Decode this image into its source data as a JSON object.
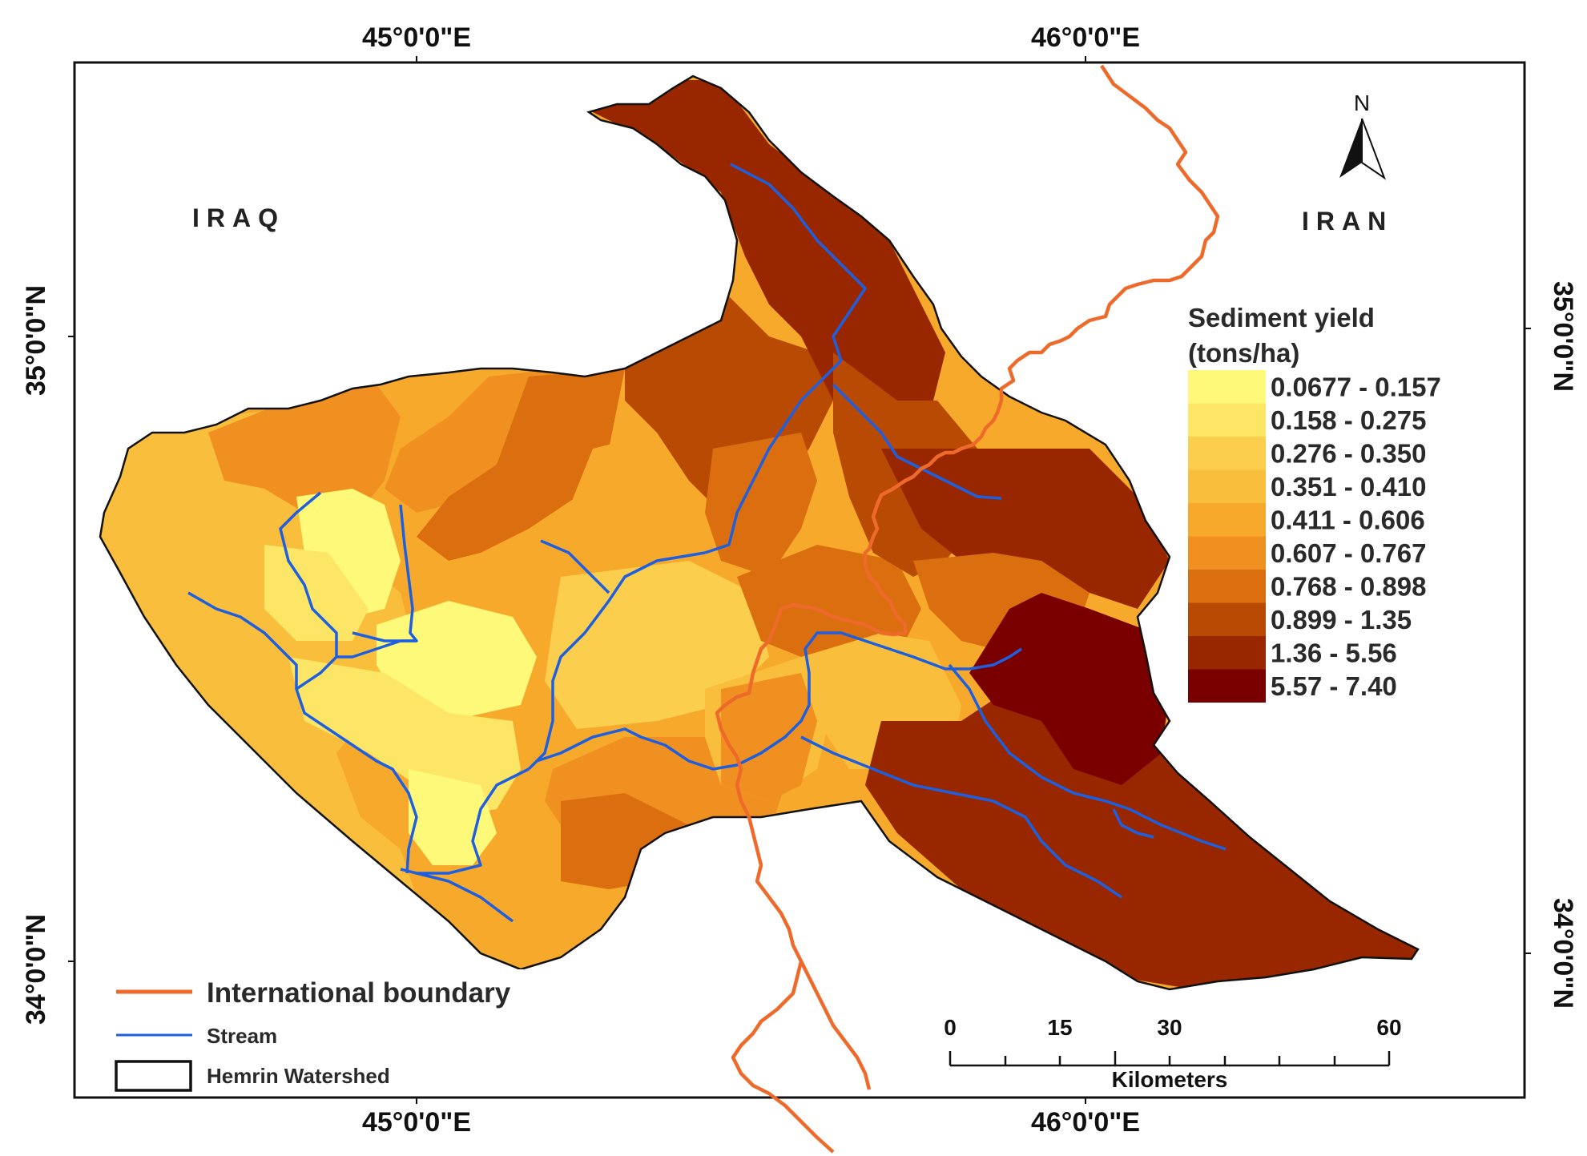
{
  "coordinates": {
    "top_left": "45°0'0\"E",
    "top_right": "46°0'0\"E",
    "bottom_left": "45°0'0\"E",
    "bottom_right": "46°0'0\"E",
    "left_upper": "35°0'0\"N",
    "left_lower": "34°0'0\"N",
    "right_upper": "35°0'0\"N",
    "right_lower": "34°0'0\"N"
  },
  "countries": {
    "left": "IRAQ",
    "right": "IRAN"
  },
  "north_arrow": {
    "label": "N"
  },
  "sediment_legend": {
    "title_line1": "Sediment yield",
    "title_line2": "(tons/ha)",
    "classes": [
      {
        "label": "0.0677 - 0.157",
        "color": "#FFF97A"
      },
      {
        "label": "0.158 - 0.275",
        "color": "#FDE566"
      },
      {
        "label": "0.276 - 0.350",
        "color": "#FBCE4E"
      },
      {
        "label": "0.351 - 0.410",
        "color": "#F9BE3B"
      },
      {
        "label": "0.411 - 0.606",
        "color": "#F7A92C"
      },
      {
        "label": "0.607 - 0.767",
        "color": "#F09020"
      },
      {
        "label": "0.768 - 0.898",
        "color": "#DB6E0E"
      },
      {
        "label": "0.899 - 1.35",
        "color": "#B94A04"
      },
      {
        "label": "1.36 - 5.56",
        "color": "#982700"
      },
      {
        "label": "5.57 - 7.40",
        "color": "#7A0000"
      }
    ]
  },
  "map_legend": {
    "boundary": {
      "label": "International boundary",
      "color": "#EE6A2A"
    },
    "stream": {
      "label": "Stream",
      "color": "#1E5FE0"
    },
    "watershed": {
      "label": "Hemrin Watershed"
    }
  },
  "scale_bar": {
    "ticks": [
      "0",
      "15",
      "30",
      "60"
    ],
    "unit": "Kilometers"
  }
}
